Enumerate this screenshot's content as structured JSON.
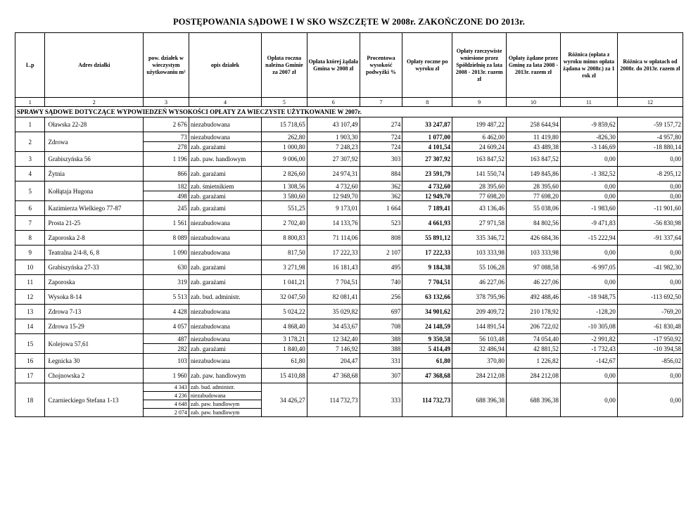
{
  "title": "POSTĘPOWANIA SĄDOWE I W SKO WSZCZĘTE W 2008r. ZAKOŃCZONE DO 2013r.",
  "table": {
    "headers": [
      "L.p",
      "Adres działki",
      "pow. działek w wieczystym użytkowaniu m²",
      "opis działek",
      "Opłata roczna należna Gminie za 2007 zł",
      "Opłata której żądała Gmina w 2008 zł",
      "Procentowa wysokość podwyżki %",
      "Opłaty roczne po wyroku zł",
      "Opłaty rzeczywiste wniesione przez Spółdzielnię za lata 2008 - 2013r. razem zł",
      "Opłaty żądane przez Gminę za lata 2008 - 2013r. razem zł",
      "Różnica (opłata z wyroku minus opłata żądana w 2008r.) za 1 rok zł",
      "Różnica w opłatach od 2008r. do 2013r. razem zł"
    ],
    "column_numbers": [
      "1",
      "2",
      "3",
      "4",
      "5",
      "6",
      "7",
      "8",
      "9",
      "10",
      "11",
      "12"
    ],
    "section_header": "SPRAWY SĄDOWE DOTYCZĄCE WYPOWIEDZEŃ WYSOKOŚCI OPŁATY ZA WIECZYSTE UŻYTKOWANIE W 2007r.",
    "rows": [
      {
        "lp": "1",
        "address": "Oławska 22-28",
        "parcels": [
          {
            "area": "2 676",
            "desc": "niezabudowana"
          }
        ],
        "values": [
          "15 718,65",
          "43 107,49",
          "274",
          "33 247,87",
          "199 487,22",
          "258 644,94",
          "-9 859,62",
          "-59 157,72"
        ]
      },
      {
        "lp": "2",
        "address": "Zdrowa",
        "parcels": [
          {
            "area": "73",
            "desc": "niezabudowana",
            "values": [
              "262,80",
              "1 903,30",
              "724",
              "1 077,00",
              "6 462,00",
              "11 419,80",
              "-826,30",
              "-4 957,80"
            ]
          },
          {
            "area": "278",
            "desc": "zab. garażami",
            "values": [
              "1 000,80",
              "7 248,23",
              "724",
              "4 101,54",
              "24 609,24",
              "43 489,38",
              "-3 146,69",
              "-18 880,14"
            ]
          }
        ]
      },
      {
        "lp": "3",
        "address": "Grabiszyńska 56",
        "parcels": [
          {
            "area": "1 196",
            "desc": "zab. paw. handlowym"
          }
        ],
        "values": [
          "9 006,00",
          "27 307,92",
          "303",
          "27 307,92",
          "163 847,52",
          "163 847,52",
          "0,00",
          "0,00"
        ]
      },
      {
        "lp": "4",
        "address": "Żytnia",
        "parcels": [
          {
            "area": "866",
            "desc": "zab. garażami"
          }
        ],
        "values": [
          "2 826,60",
          "24 974,31",
          "884",
          "23 591,79",
          "141 550,74",
          "149 845,86",
          "-1 382,52",
          "-8 295,12"
        ]
      },
      {
        "lp": "5",
        "address": "Kołłątaja Hugona",
        "parcels": [
          {
            "area": "182",
            "desc": "zab. śmietnikiem",
            "values": [
              "1 308,56",
              "4 732,60",
              "362",
              "4 732,60",
              "28 395,60",
              "28 395,60",
              "0,00",
              "0,00"
            ]
          },
          {
            "area": "498",
            "desc": "zab. garażami",
            "values": [
              "3 580,60",
              "12 949,70",
              "362",
              "12 949,70",
              "77 698,20",
              "77 698,20",
              "0,00",
              "0,00"
            ]
          }
        ]
      },
      {
        "lp": "6",
        "address": "Kazimierza Wielkiego 77-87",
        "parcels": [
          {
            "area": "245",
            "desc": "zab. garażami"
          }
        ],
        "values": [
          "551,25",
          "9 173,01",
          "1 664",
          "7 189,41",
          "43 136,46",
          "55 038,06",
          "-1 983,60",
          "-11 901,60"
        ]
      },
      {
        "lp": "7",
        "address": "Prosta 21-25",
        "parcels": [
          {
            "area": "1 561",
            "desc": "niezabudowana"
          }
        ],
        "values": [
          "2 702,40",
          "14 133,76",
          "523",
          "4 661,93",
          "27 971,58",
          "84 802,56",
          "-9 471,83",
          "-56 830,98"
        ]
      },
      {
        "lp": "8",
        "address": "Zaporoska 2-8",
        "parcels": [
          {
            "area": "8 089",
            "desc": "niezabudowana"
          }
        ],
        "values": [
          "8 800,83",
          "71 114,06",
          "808",
          "55 891,12",
          "335 346,72",
          "426 684,36",
          "-15 222,94",
          "-91 337,64"
        ]
      },
      {
        "lp": "9",
        "address": "Teatralna 2/4-8, 6, 8",
        "parcels": [
          {
            "area": "1 090",
            "desc": "niezabudowana"
          }
        ],
        "values": [
          "817,50",
          "17 222,33",
          "2 107",
          "17 222,33",
          "103 333,98",
          "103 333,98",
          "0,00",
          "0,00"
        ]
      },
      {
        "lp": "10",
        "address": "Grabiszyńska 27-33",
        "parcels": [
          {
            "area": "630",
            "desc": "zab. garażami"
          }
        ],
        "values": [
          "3 271,98",
          "16 181,43",
          "495",
          "9 184,38",
          "55 106,28",
          "97 088,58",
          "-6 997,05",
          "-41 982,30"
        ]
      },
      {
        "lp": "11",
        "address": "Zaporoska",
        "parcels": [
          {
            "area": "319",
            "desc": "zab. garażami"
          }
        ],
        "values": [
          "1 041,21",
          "7 704,51",
          "740",
          "7 704,51",
          "46 227,06",
          "46 227,06",
          "0,00",
          "0,00"
        ]
      },
      {
        "lp": "12",
        "address": "Wysoka 8-14",
        "parcels": [
          {
            "area": "5 513",
            "desc": "zab. bud. administr."
          }
        ],
        "values": [
          "32 047,50",
          "82 081,41",
          "256",
          "63 132,66",
          "378 795,96",
          "492 488,46",
          "-18 948,75",
          "-113 692,50"
        ]
      },
      {
        "lp": "13",
        "address": "Zdrowa 7-13",
        "parcels": [
          {
            "area": "4 428",
            "desc": "niezabudowana"
          }
        ],
        "values": [
          "5 024,22",
          "35 029,82",
          "697",
          "34 901,62",
          "209 409,72",
          "210 178,92",
          "-128,20",
          "-769,20"
        ]
      },
      {
        "lp": "14",
        "address": "Zdrowa 15-29",
        "parcels": [
          {
            "area": "4 057",
            "desc": "niezabudowana"
          }
        ],
        "values": [
          "4 868,40",
          "34 453,67",
          "708",
          "24 148,59",
          "144 891,54",
          "206 722,02",
          "-10 305,08",
          "-61 830,48"
        ]
      },
      {
        "lp": "15",
        "address": "Kolejowa 57,61",
        "parcels": [
          {
            "area": "487",
            "desc": "niezabudowana",
            "values": [
              "3 178,21",
              "12 342,40",
              "388",
              "9 350,58",
              "56 103,48",
              "74 054,40",
              "-2 991,82",
              "-17 950,92"
            ]
          },
          {
            "area": "282",
            "desc": "zab. garażami",
            "values": [
              "1 840,40",
              "7 146,92",
              "388",
              "5 414,49",
              "32 486,94",
              "42 881,52",
              "-1 732,43",
              "-10 394,58"
            ]
          }
        ]
      },
      {
        "lp": "16",
        "address": "Łegnicka 30",
        "parcels": [
          {
            "area": "103",
            "desc": "niezabudowana"
          }
        ],
        "values": [
          "61,80",
          "204,47",
          "331",
          "61,80",
          "370,80",
          "1 226,82",
          "-142,67",
          "-856,02"
        ]
      },
      {
        "lp": "17",
        "address": "Chojnowska 2",
        "parcels": [
          {
            "area": "1 960",
            "desc": "zab. paw. handlowym"
          }
        ],
        "values": [
          "15 410,88",
          "47 368,68",
          "307",
          "47 368,68",
          "284 212,08",
          "284 212,08",
          "0,00",
          "0,00"
        ]
      },
      {
        "lp": "18",
        "address": "Czarnieckiego Stefana 1-13",
        "parcels": [
          {
            "area": "4 343",
            "desc": "zab. bud. administr."
          },
          {
            "area": "4 236",
            "desc": "niezabudowana"
          },
          {
            "area": "4 648",
            "desc": "zab. paw. handlowym"
          },
          {
            "area": "2 074",
            "desc": "zab. paw. handlowym"
          }
        ],
        "values": [
          "34 426,27",
          "114 732,73",
          "333",
          "114 732,73",
          "688 396,38",
          "688 396,38",
          "0,00",
          "0,00"
        ]
      }
    ]
  }
}
